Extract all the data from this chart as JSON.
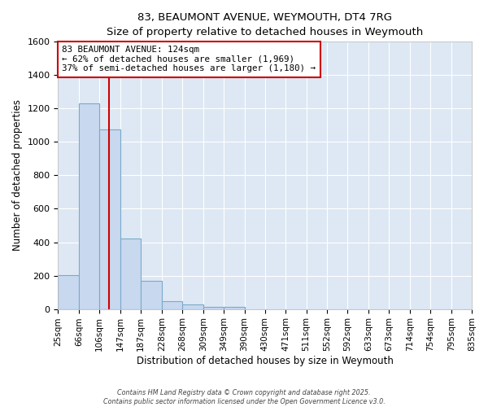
{
  "title": "83, BEAUMONT AVENUE, WEYMOUTH, DT4 7RG",
  "subtitle": "Size of property relative to detached houses in Weymouth",
  "xlabel": "Distribution of detached houses by size in Weymouth",
  "ylabel": "Number of detached properties",
  "bar_color": "#c8d8ee",
  "bar_edge_color": "#7aaacc",
  "background_color": "#dde8f4",
  "fig_background_color": "#ffffff",
  "grid_color": "#ffffff",
  "bin_labels": [
    "25sqm",
    "66sqm",
    "106sqm",
    "147sqm",
    "187sqm",
    "228sqm",
    "268sqm",
    "309sqm",
    "349sqm",
    "390sqm",
    "430sqm",
    "471sqm",
    "511sqm",
    "552sqm",
    "592sqm",
    "633sqm",
    "673sqm",
    "714sqm",
    "754sqm",
    "795sqm",
    "835sqm"
  ],
  "bar_heights": [
    205,
    1232,
    1075,
    420,
    170,
    45,
    25,
    15,
    15,
    0,
    0,
    0,
    0,
    0,
    0,
    0,
    0,
    0,
    0,
    0
  ],
  "bin_edges": [
    25,
    66,
    106,
    147,
    187,
    228,
    268,
    309,
    349,
    390,
    430,
    471,
    511,
    552,
    592,
    633,
    673,
    714,
    754,
    795,
    835
  ],
  "ylim": [
    0,
    1600
  ],
  "yticks": [
    0,
    200,
    400,
    600,
    800,
    1000,
    1200,
    1400,
    1600
  ],
  "property_size": 124,
  "vline_color": "#cc0000",
  "annotation_line1": "83 BEAUMONT AVENUE: 124sqm",
  "annotation_line2": "← 62% of detached houses are smaller (1,969)",
  "annotation_line3": "37% of semi-detached houses are larger (1,180) →",
  "annotation_box_color": "#ffffff",
  "annotation_box_edge_color": "#cc0000",
  "footer_line1": "Contains HM Land Registry data © Crown copyright and database right 2025.",
  "footer_line2": "Contains public sector information licensed under the Open Government Licence v3.0."
}
